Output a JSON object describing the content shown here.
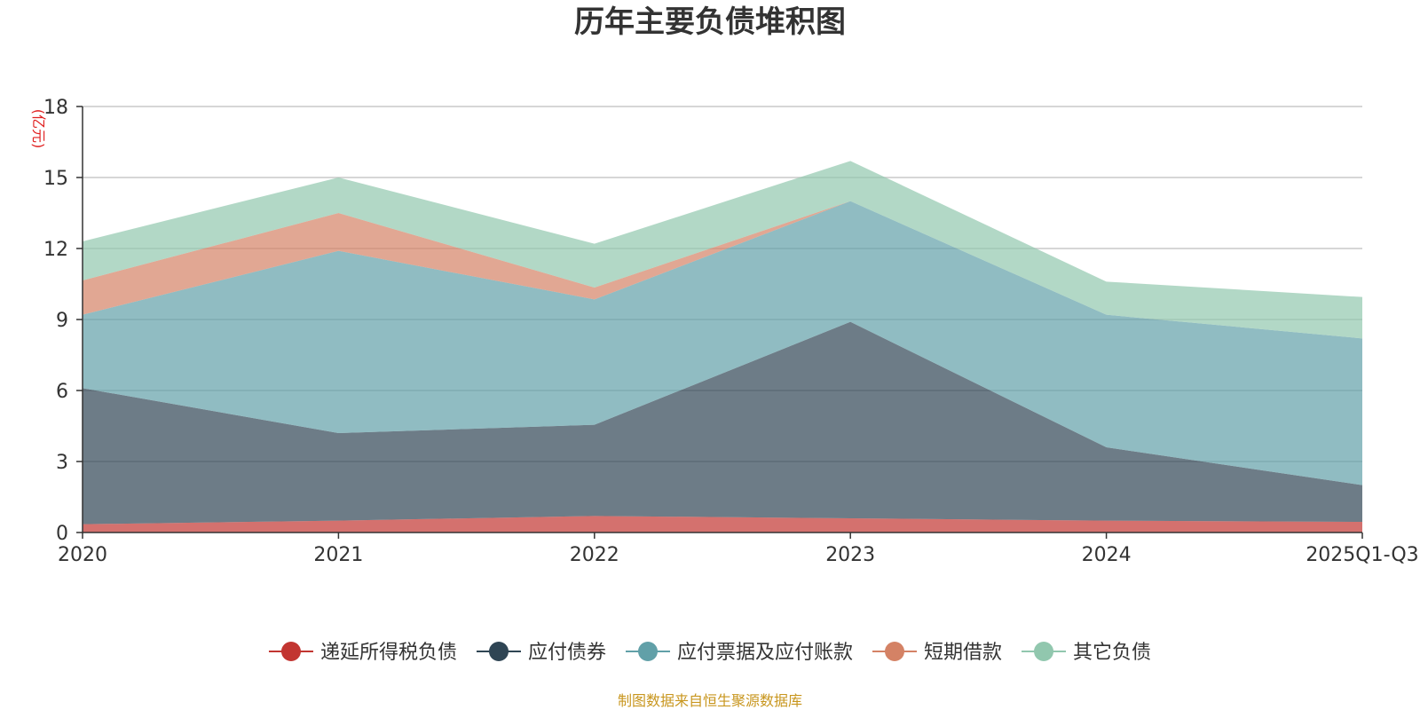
{
  "chart_data": {
    "type": "area",
    "stacked": true,
    "title": "历年主要负债堆积图",
    "unit_label": "(亿元)",
    "categories": [
      "2020",
      "2021",
      "2022",
      "2023",
      "2024",
      "2025Q1-Q3"
    ],
    "ylim": [
      0,
      18
    ],
    "yticks": [
      0,
      3,
      6,
      9,
      12,
      15,
      18
    ],
    "grid": true,
    "legend_position": "bottom",
    "series": [
      {
        "name": "递延所得税负债",
        "color": "#c23531",
        "values": [
          0.35,
          0.5,
          0.7,
          0.6,
          0.5,
          0.45
        ]
      },
      {
        "name": "应付债券",
        "color": "#2f4554",
        "values": [
          5.75,
          3.7,
          3.85,
          8.3,
          3.1,
          1.55
        ]
      },
      {
        "name": "应付票据及应付账款",
        "color": "#61a0a8",
        "values": [
          3.1,
          7.7,
          5.3,
          5.1,
          5.6,
          6.2
        ]
      },
      {
        "name": "短期借款",
        "color": "#d48265",
        "values": [
          1.45,
          1.6,
          0.5,
          0,
          0,
          0
        ]
      },
      {
        "name": "其它负债",
        "color": "#91c7ae",
        "values": [
          1.65,
          1.5,
          1.85,
          1.7,
          1.4,
          1.75
        ]
      }
    ],
    "source_note": "制图数据来自恒生聚源数据库"
  }
}
